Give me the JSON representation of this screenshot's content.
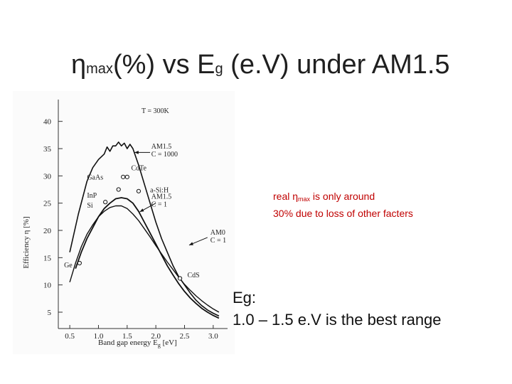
{
  "slide": {
    "title_eta": "η",
    "title_max": "max",
    "title_mid": "(%) vs E",
    "title_g": "g",
    "title_end": " (e.V) under AM1.5",
    "note_line1_a": "real η",
    "note_line1_sub": "max",
    "note_line1_b": " is only around",
    "note_line2": "30% due to loss of other facters",
    "eg_heading": "Eg:",
    "eg_range": "1.0 – 1.5 e.V is the best range"
  },
  "chart_data": {
    "type": "line",
    "xlabel": "Band gap energy",
    "xlabel_symbol": "E",
    "xlabel_sub": "g",
    "xlabel_unit": "[eV]",
    "ylabel": "Efficiency η [%]",
    "xlim": [
      0.3,
      3.25
    ],
    "ylim": [
      2,
      44
    ],
    "x_ticks": [
      "0.5",
      "1.0",
      "1.5",
      "2.0",
      "2.5",
      "3.0"
    ],
    "x_tick_values": [
      0.5,
      1.0,
      1.5,
      2.0,
      2.5,
      3.0
    ],
    "y_ticks": [
      "5",
      "10",
      "15",
      "20",
      "25",
      "30",
      "35",
      "40"
    ],
    "y_tick_values": [
      5,
      10,
      15,
      20,
      25,
      30,
      35,
      40
    ],
    "temperature_label": "T = 300K",
    "series": [
      {
        "name": "AM1.5 C = 1000",
        "x": [
          0.5,
          0.65,
          0.8,
          0.9,
          1.0,
          1.1,
          1.15,
          1.2,
          1.25,
          1.3,
          1.35,
          1.4,
          1.45,
          1.5,
          1.55,
          1.6,
          1.65,
          1.7,
          1.8,
          1.9,
          2.0,
          2.1,
          2.2,
          2.3,
          2.4,
          2.5,
          2.6,
          2.7,
          2.8,
          2.9,
          3.0,
          3.1
        ],
        "y": [
          16,
          23,
          29,
          31.5,
          33,
          34,
          35.3,
          34.5,
          35.5,
          35.5,
          36.2,
          35.5,
          36,
          35,
          35.8,
          35,
          33.5,
          32,
          28.5,
          25,
          21.5,
          18.5,
          16,
          13.5,
          11.5,
          10,
          8.5,
          7.2,
          6.2,
          5.4,
          4.8,
          4.3
        ]
      },
      {
        "name": "AM1.5 C = 1",
        "x": [
          0.6,
          0.7,
          0.8,
          0.9,
          1.0,
          1.1,
          1.2,
          1.3,
          1.4,
          1.5,
          1.6,
          1.7,
          1.8,
          1.9,
          2.0,
          2.1,
          2.2,
          2.3,
          2.4,
          2.5,
          2.6,
          2.7,
          2.8,
          2.9,
          3.0,
          3.1
        ],
        "y": [
          13,
          16,
          18.5,
          20.5,
          22.5,
          24,
          25,
          25.8,
          26,
          25.8,
          25,
          23.5,
          21.5,
          19.5,
          17.5,
          15.5,
          13.5,
          11.8,
          10.2,
          8.8,
          7.6,
          6.6,
          5.7,
          5,
          4.4,
          3.9
        ]
      },
      {
        "name": "AM0 C = 1",
        "x": [
          0.5,
          0.6,
          0.7,
          0.8,
          0.9,
          1.0,
          1.1,
          1.2,
          1.3,
          1.4,
          1.5,
          1.6,
          1.7,
          1.8,
          1.9,
          2.0,
          2.1,
          2.2,
          2.3,
          2.4,
          2.5,
          2.6,
          2.7,
          2.8,
          2.9,
          3.0,
          3.1
        ],
        "y": [
          10.5,
          14,
          17,
          19.3,
          21,
          22.5,
          23.5,
          24.2,
          24.5,
          24.5,
          24,
          23,
          21.8,
          20.3,
          18.8,
          17.2,
          15.7,
          14.2,
          12.8,
          11.4,
          10.1,
          9,
          8,
          7.1,
          6.3,
          5.6,
          5
        ]
      }
    ],
    "materials": [
      {
        "name": "Ge",
        "x": 0.67,
        "y": 14
      },
      {
        "name": "Si",
        "x": 1.12,
        "y": 25.2
      },
      {
        "name": "InP",
        "x": 1.35,
        "y": 27.5
      },
      {
        "name": "GaAs",
        "x": 1.43,
        "y": 29.8
      },
      {
        "name": "CdTe",
        "x": 1.5,
        "y": 29.8
      },
      {
        "name": "a-Si:H",
        "x": 1.7,
        "y": 27.2
      },
      {
        "name": "CdS",
        "x": 2.42,
        "y": 11.2
      }
    ],
    "annotations": [
      {
        "text": "AM1.5",
        "text2": "C = 1000",
        "points_to_series": 0
      },
      {
        "text": "AM1.5",
        "text2": "C = 1",
        "points_to_series": 1
      },
      {
        "text": "AM0",
        "text2": "C = 1",
        "points_to_series": 2
      }
    ]
  }
}
